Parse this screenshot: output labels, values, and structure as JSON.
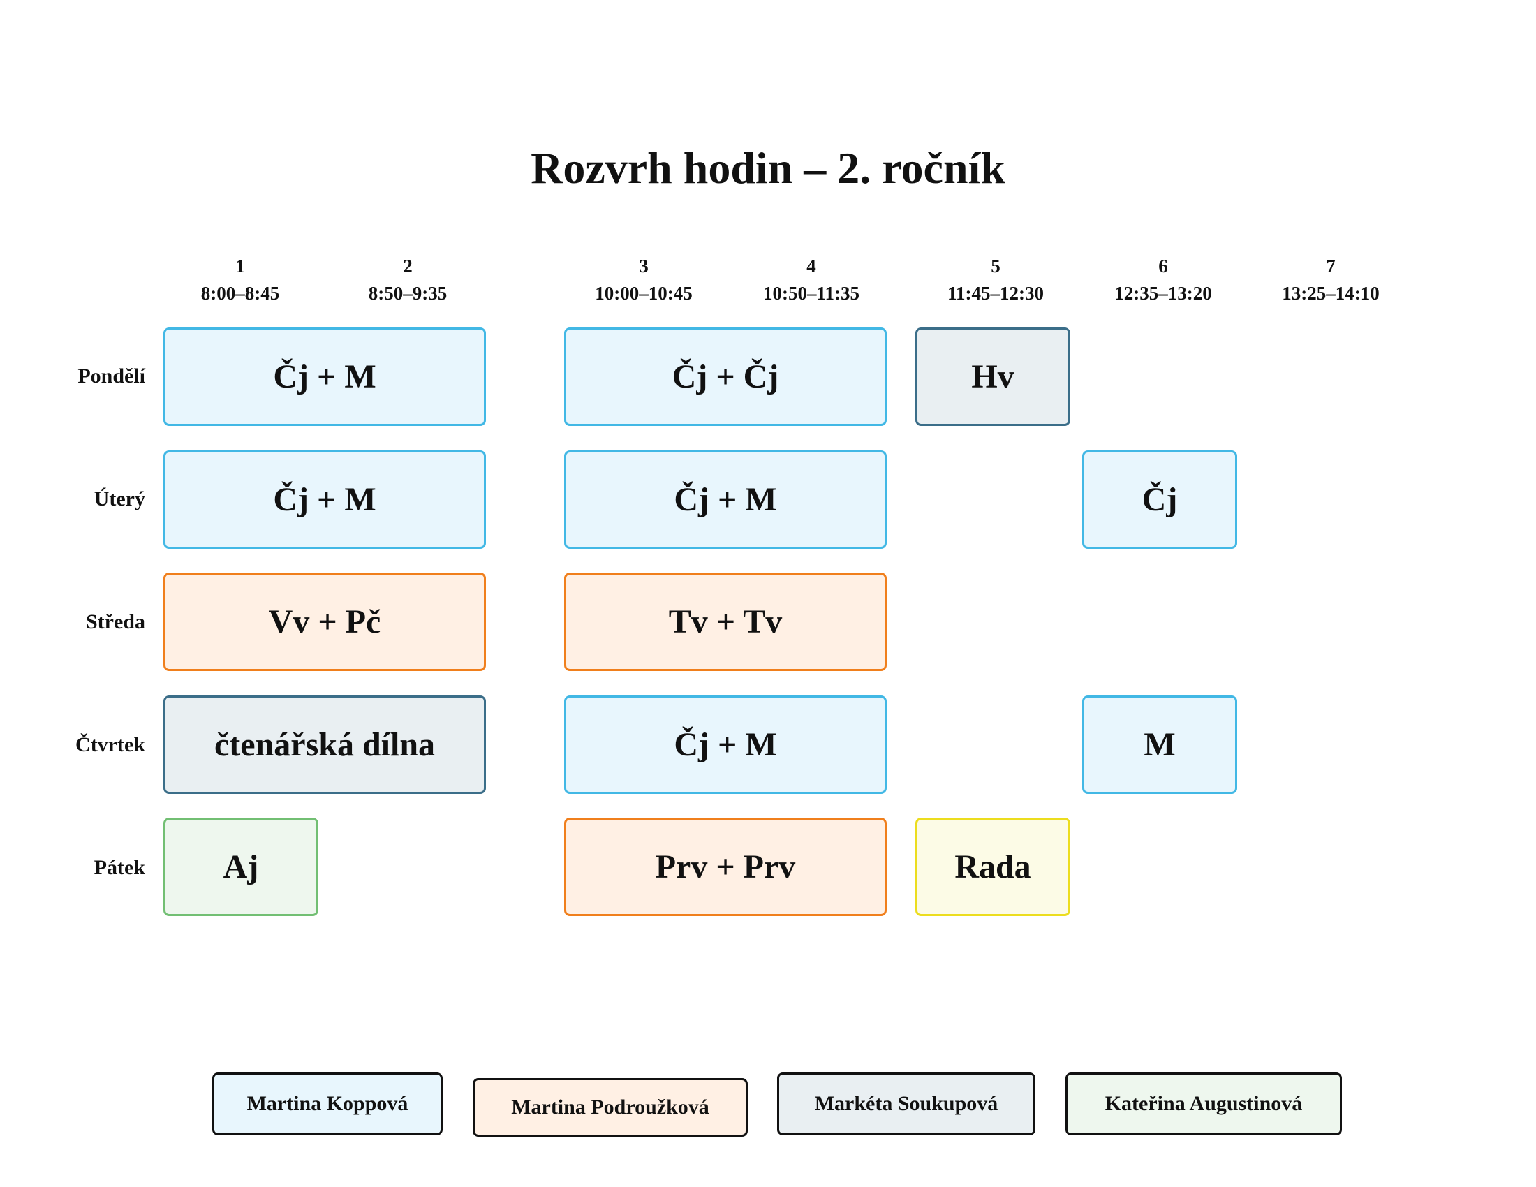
{
  "title": "Rozvrh hodin – 2. ročník",
  "colors": {
    "Martina Koppová": {
      "fill": "#e8f6fd",
      "border": "#42b8e5"
    },
    "Martina Podroužková": {
      "fill": "#fff0e4",
      "border": "#f07f1c"
    },
    "Markéta Soukupová": {
      "fill": "#e9eff2",
      "border": "#3b6e89"
    },
    "Kateřina Augustinová": {
      "fill": "#eef7ee",
      "border": "#72bf73"
    },
    "Rada": {
      "fill": "#fcfbe6",
      "border": "#ecdd1e"
    }
  },
  "periods": [
    {
      "number": "1",
      "time": "8:00–8:45"
    },
    {
      "number": "2",
      "time": "8:50–9:35"
    },
    {
      "number": "3",
      "time": "10:00–10:45"
    },
    {
      "number": "4",
      "time": "10:50–11:35"
    },
    {
      "number": "5",
      "time": "11:45–12:30"
    },
    {
      "number": "6",
      "time": "12:35–13:20"
    },
    {
      "number": "7",
      "time": "13:25–14:10"
    }
  ],
  "days": [
    "Pondělí",
    "Úterý",
    "Středa",
    "Čtvrtek",
    "Pátek"
  ],
  "lessons": {
    "mon_1_2": "Čj + M",
    "mon_3_4": "Čj + Čj",
    "mon_5": "Hv",
    "tue_1_2": "Čj + M",
    "tue_3_4": "Čj + M",
    "tue_6": "Čj",
    "wed_1_2": "Vv + Pč",
    "wed_3_4": "Tv + Tv",
    "thu_1_2": "čtenářská dílna",
    "thu_3_4": "Čj + M",
    "thu_6": "M",
    "fri_1": "Aj",
    "fri_3_4": "Prv + Prv",
    "fri_5": "Rada"
  },
  "legend": [
    "Martina Koppová",
    "Martina Podroužková",
    "Markéta Soukupová",
    "Kateřina Augustinová"
  ]
}
